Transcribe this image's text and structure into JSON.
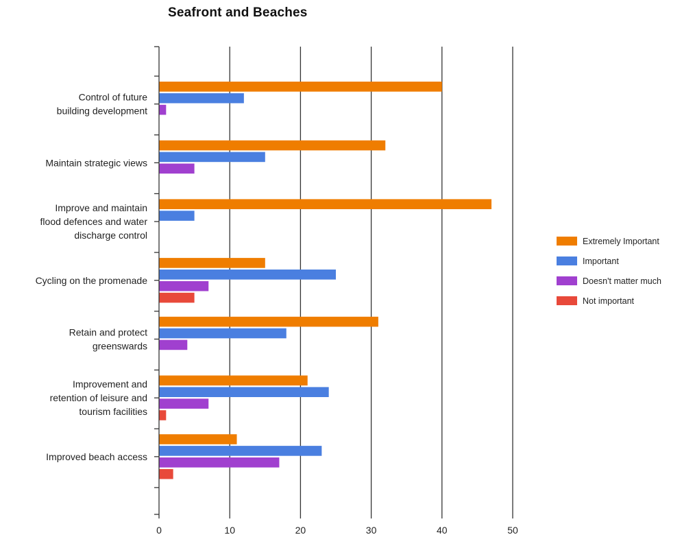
{
  "chart_data": {
    "type": "bar",
    "orientation": "horizontal",
    "title": "Seafront and Beaches",
    "xlabel": "",
    "ylabel": "",
    "xlim": [
      0,
      50
    ],
    "x_ticks": [
      "0",
      "10",
      "20",
      "30",
      "40",
      "50"
    ],
    "grid": "vertical major gridlines",
    "legend_position": "right",
    "categories": [
      [
        "Control of future",
        "building development"
      ],
      [
        "Maintain strategic views"
      ],
      [
        "Improve and maintain",
        "flood defences and water",
        "discharge control"
      ],
      [
        "Cycling on the promenade"
      ],
      [
        "Retain and protect",
        "greenswards"
      ],
      [
        "Improvement and",
        "retention of leisure and",
        "tourism facilities"
      ],
      [
        "Improved beach access"
      ]
    ],
    "series": [
      {
        "name": "Extremely Important",
        "color": "#EF7D00",
        "values": [
          40,
          32,
          47,
          15,
          31,
          21,
          11
        ]
      },
      {
        "name": "Important",
        "color": "#4A7FE0",
        "values": [
          12,
          15,
          5,
          25,
          18,
          24,
          23
        ]
      },
      {
        "name": "Doesn't matter much",
        "color": "#A040CF",
        "values": [
          1,
          5,
          0,
          7,
          4,
          7,
          17
        ]
      },
      {
        "name": "Not important",
        "color": "#E8493A",
        "values": [
          0,
          0,
          0,
          5,
          0,
          1,
          2
        ]
      }
    ]
  }
}
